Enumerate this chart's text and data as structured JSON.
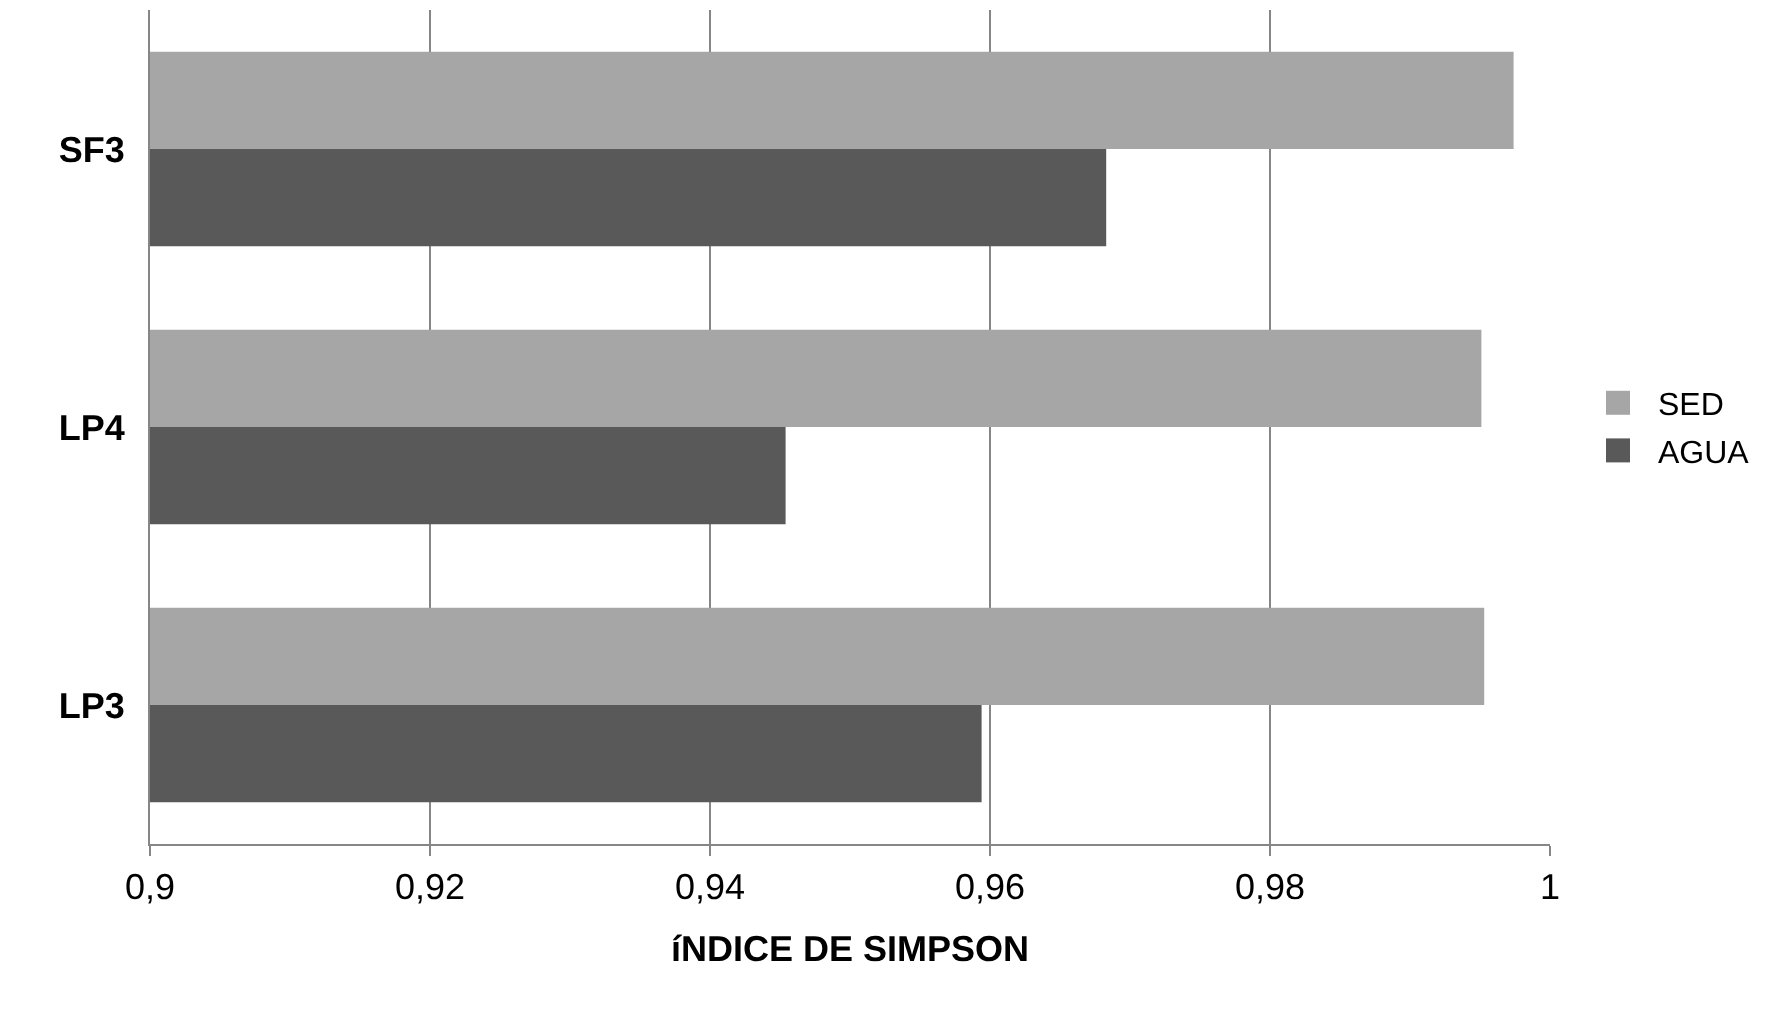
{
  "chart_data": {
    "type": "bar",
    "orientation": "horizontal",
    "xlabel": "íNDICE DE SIMPSON",
    "categories": [
      "SF3",
      "LP4",
      "LP3"
    ],
    "series": [
      {
        "name": "SED",
        "color": "#a6a6a6",
        "values": [
          0.9974,
          0.9951,
          0.9953
        ]
      },
      {
        "name": "AGUA",
        "color": "#595959",
        "values": [
          0.9683,
          0.9454,
          0.9594
        ]
      }
    ],
    "xlim": [
      0.9,
      1
    ],
    "xticks": [
      {
        "value": 0.9,
        "label": "0,9"
      },
      {
        "value": 0.92,
        "label": "0,92"
      },
      {
        "value": 0.94,
        "label": "0,94"
      },
      {
        "value": 0.96,
        "label": "0,96"
      },
      {
        "value": 0.98,
        "label": "0,98"
      },
      {
        "value": 1,
        "label": "1"
      }
    ],
    "grid": "x",
    "legend": "right"
  }
}
